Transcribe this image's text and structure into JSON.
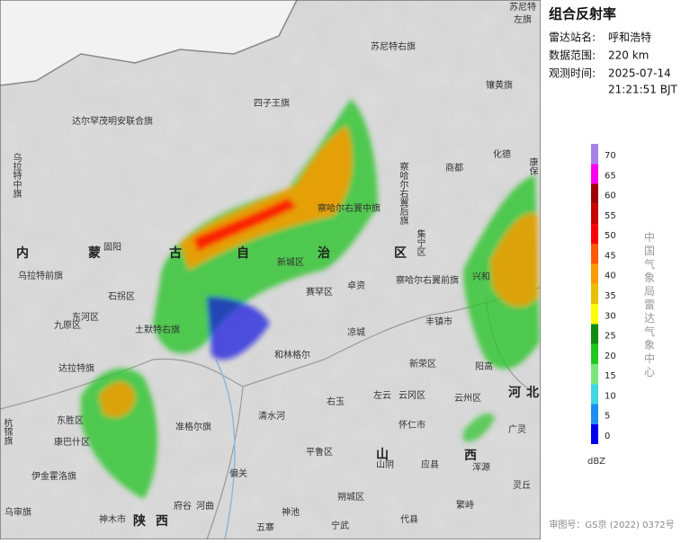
{
  "panel": {
    "title": "组合反射率",
    "rows": [
      [
        "雷达站名:",
        "呼和浩特"
      ],
      [
        "数据范围:",
        "220 km"
      ],
      [
        "观测时间:",
        "2025-07-14"
      ]
    ],
    "time_extra": "21:21:51 BJT",
    "watermark": "中国气象局雷达气象中心",
    "unit": "dBZ",
    "approval": "审图号：GS京 (2022) 0372号"
  },
  "legend": {
    "ticks": [
      0,
      5,
      10,
      15,
      20,
      25,
      30,
      35,
      40,
      45,
      50,
      55,
      60,
      65,
      70
    ],
    "colors": [
      "#0000f0",
      "#1e8ff0",
      "#3fd8e0",
      "#7ae67a",
      "#1ec81e",
      "#0f8c0f",
      "#ffff00",
      "#e8c000",
      "#ff9a00",
      "#ff5a00",
      "#ff0000",
      "#c80000",
      "#a00000",
      "#ff00f0",
      "#a880e8"
    ]
  },
  "map": {
    "labels": [
      "苏尼特",
      "左旗",
      "苏尼特右旗",
      "四子王旗",
      "达尔罕茂明安联合旗",
      "镶黄旗",
      "乌拉特中旗",
      "察哈尔右翼后旗",
      "商都",
      "化德",
      "康保",
      "察哈尔右翼中旗",
      "集宁区",
      "察哈尔右翼前旗",
      "兴和",
      "丰镇市",
      "内",
      "蒙",
      "古",
      "自",
      "治",
      "区",
      "固阳",
      "乌拉特前旗",
      "新城区",
      "赛罕区",
      "卓资",
      "凉城",
      "和林格尔",
      "石拐区",
      "东河区",
      "九原区",
      "土默特右旗",
      "达拉特旗",
      "东胜区",
      "康巴什区",
      "伊金霍洛旗",
      "准格尔旗",
      "清水河",
      "右玉",
      "左云",
      "云冈区",
      "云州区",
      "新荣区",
      "阳高",
      "怀仁市",
      "平鲁区",
      "山阴",
      "应县",
      "浑源",
      "广灵",
      "灵丘",
      "繁峙",
      "代县",
      "朔城区",
      "偏关",
      "河曲",
      "府谷",
      "神木市",
      "五寨",
      "神池",
      "宁武",
      "乌审旗",
      "杭锦旗",
      "河",
      "北",
      "山",
      "西",
      "陕",
      "西"
    ]
  }
}
